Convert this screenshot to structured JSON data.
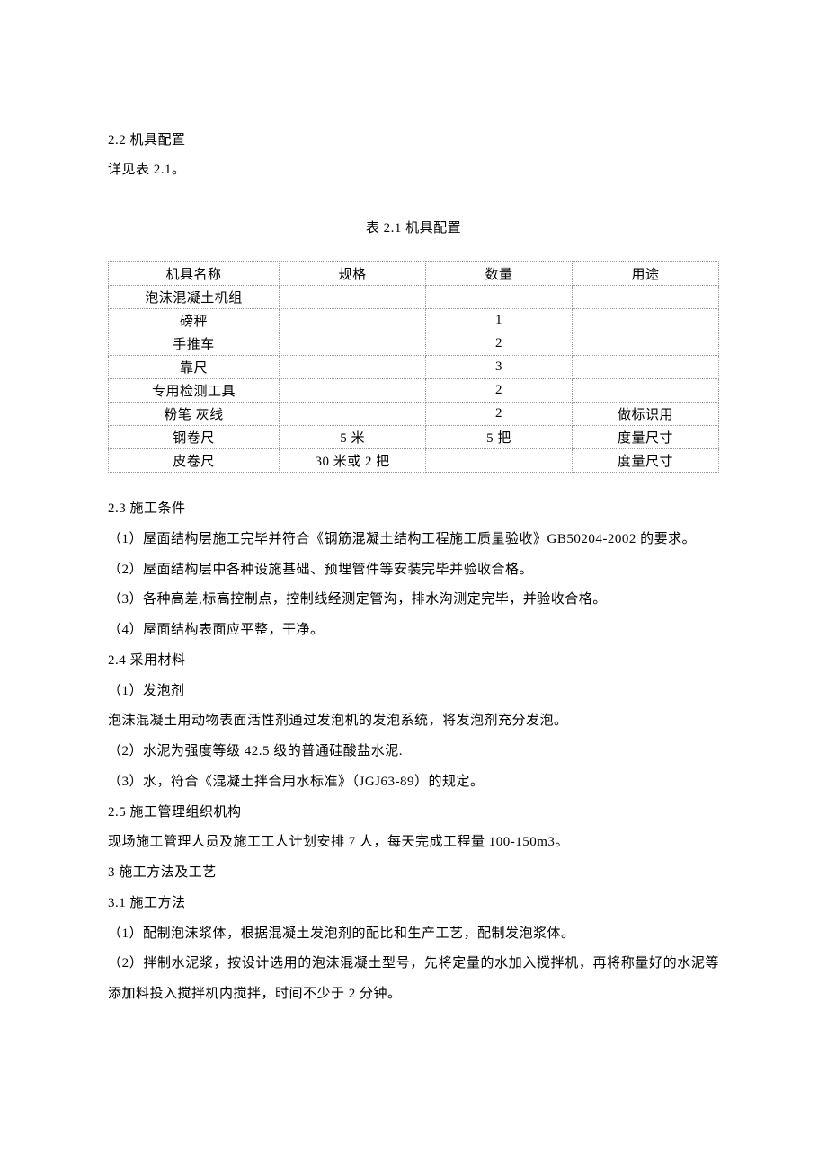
{
  "section22": {
    "heading": "2.2 机具配置",
    "ref": "详见表 2.1。"
  },
  "table": {
    "caption": "表 2.1 机具配置",
    "headers": [
      "机具名称",
      "规格",
      "数量",
      "用途"
    ],
    "rows": [
      [
        "泡沫混凝土机组",
        "",
        "",
        ""
      ],
      [
        "磅秤",
        "",
        "1",
        ""
      ],
      [
        "手推车",
        "",
        "2",
        ""
      ],
      [
        "靠尺",
        "",
        "3",
        ""
      ],
      [
        "专用检测工具",
        "",
        "2",
        ""
      ],
      [
        "粉笔 灰线",
        "",
        "2",
        "做标识用"
      ],
      [
        "钢卷尺",
        "5 米",
        "5 把",
        "度量尺寸"
      ],
      [
        "皮卷尺",
        "30 米或 2 把",
        "",
        "度量尺寸"
      ]
    ]
  },
  "body": {
    "lines": [
      "2.3 施工条件",
      "（1）屋面结构层施工完毕并符合《钢筋混凝土结构工程施工质量验收》GB50204-2002 的要求。",
      "（2）屋面结构层中各种设施基础、预埋管件等安装完毕并验收合格。",
      "（3）各种高差,标高控制点，控制线经测定管沟，排水沟测定完毕，并验收合格。",
      "（4）屋面结构表面应平整，干净。",
      "2.4 采用材料",
      "（1）发泡剂",
      "泡沫混凝土用动物表面活性剂通过发泡机的发泡系统，将发泡剂充分发泡。",
      "（2）水泥为强度等级 42.5 级的普通硅酸盐水泥.",
      "（3）水，符合《混凝土拌合用水标准》（JGJ63-89）的规定。",
      "2.5 施工管理组织机构",
      "现场施工管理人员及施工工人计划安排 7 人，每天完成工程量 100-150m3。",
      "3 施工方法及工艺",
      "3.1 施工方法",
      "（1）配制泡沫浆体，根据混凝土发泡剂的配比和生产工艺，配制发泡浆体。",
      "（2）拌制水泥浆，按设计选用的泡沫混凝土型号，先将定量的水加入搅拌机，再将称量好的水泥等添加料投入搅拌机内搅拌，时间不少于 2 分钟。"
    ]
  },
  "style": {
    "background_color": "#ffffff",
    "text_color": "#000000",
    "font_family": "SimSun",
    "font_size": 15,
    "line_height": 2.2,
    "border_color": "#999999"
  }
}
